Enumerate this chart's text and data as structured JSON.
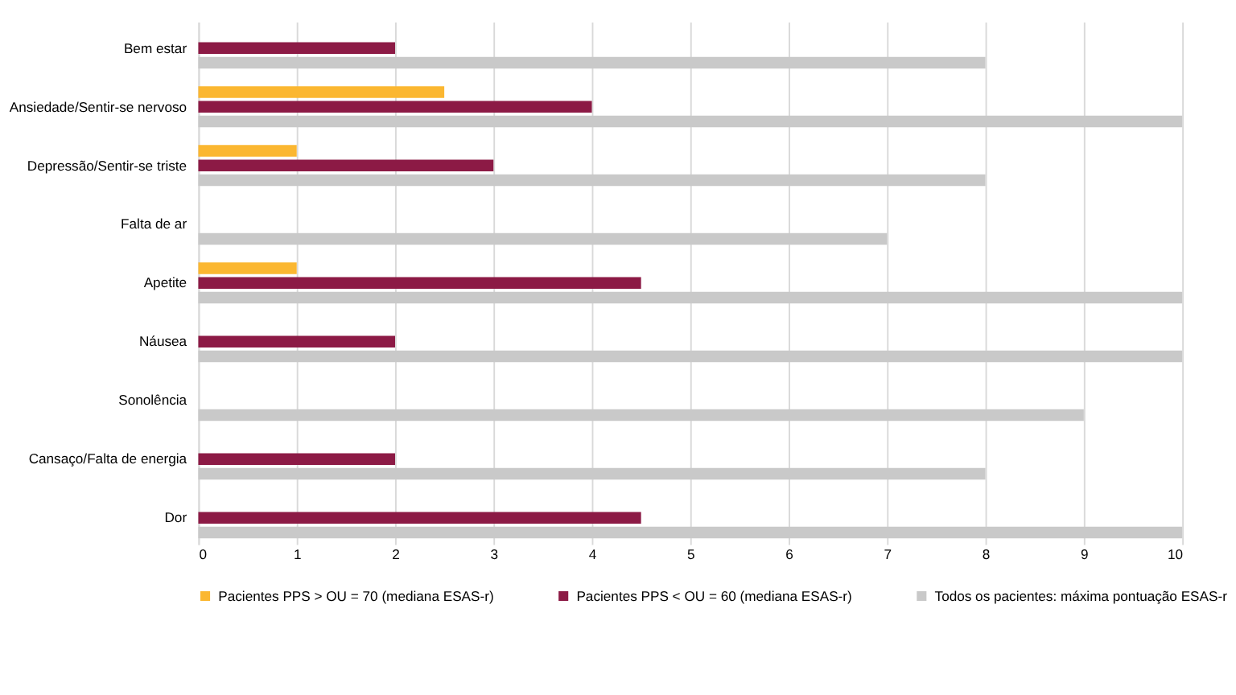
{
  "chart_data": {
    "type": "bar",
    "orientation": "horizontal",
    "categories": [
      "Bem estar",
      "Ansiedade/Sentir-se nervoso",
      "Depressão/Sentir-se triste",
      "Falta de ar",
      "Apetite",
      "Náusea",
      "Sonolência",
      "Cansaço/Falta de energia",
      "Dor"
    ],
    "series": [
      {
        "name": "Pacientes PPS > OU = 70 (mediana ESAS-r)",
        "color": "#fbb731",
        "values": [
          null,
          2.5,
          1,
          null,
          1,
          null,
          null,
          null,
          null
        ]
      },
      {
        "name": "Pacientes PPS < OU = 60 (mediana ESAS-r)",
        "color": "#8c1a45",
        "values": [
          2,
          4,
          3,
          null,
          4.5,
          2,
          null,
          2,
          4.5
        ]
      },
      {
        "name": "Todos os pacientes: máxima pontuação ESAS-r",
        "color": "#c9c9c9",
        "values": [
          8,
          10,
          8,
          7,
          10,
          10,
          9,
          8,
          10
        ]
      }
    ],
    "xlim": [
      0,
      10
    ],
    "xticks": [
      0,
      1,
      2,
      3,
      4,
      5,
      6,
      7,
      8,
      9,
      10
    ],
    "grid": "x",
    "legend": "bottom"
  }
}
